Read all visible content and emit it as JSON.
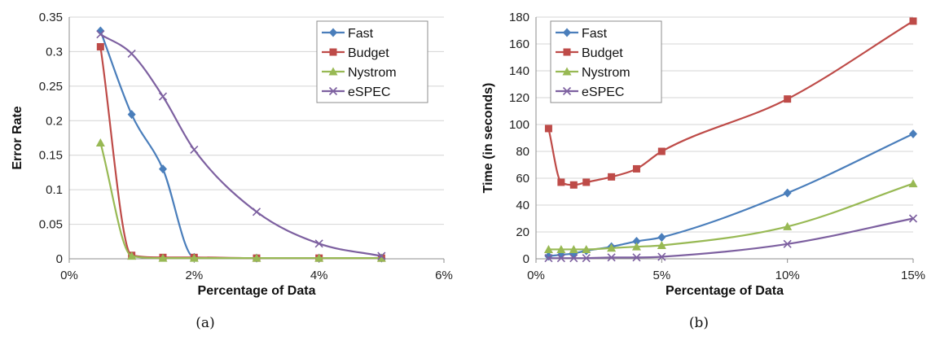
{
  "chart_data": [
    {
      "type": "line",
      "caption": "(a)",
      "xlabel": "Percentage of Data",
      "ylabel": "Error Rate",
      "xlim": [
        0,
        6
      ],
      "ylim": [
        0,
        0.35
      ],
      "x_ticks": [
        0,
        2,
        4,
        6
      ],
      "x_tick_labels": [
        "0%",
        "2%",
        "4%",
        "6%"
      ],
      "y_ticks": [
        0,
        0.05,
        0.1,
        0.15,
        0.2,
        0.25,
        0.3,
        0.35
      ],
      "y_tick_labels": [
        "0",
        "0.05",
        "0.1",
        "0.15",
        "0.2",
        "0.25",
        "0.3",
        "0.35"
      ],
      "grid": "horizontal",
      "legend_position": "top-right",
      "series": [
        {
          "name": "Fast",
          "color": "#4a7ebb",
          "marker": "diamond",
          "x": [
            0.5,
            1,
            1.5,
            2,
            3,
            4,
            5
          ],
          "y": [
            0.33,
            0.209,
            0.13,
            0.002,
            0.001,
            0.001,
            0.001
          ]
        },
        {
          "name": "Budget",
          "color": "#be4b48",
          "marker": "square",
          "x": [
            0.5,
            1,
            1.5,
            2,
            3,
            4,
            5
          ],
          "y": [
            0.307,
            0.005,
            0.002,
            0.002,
            0.001,
            0.001,
            0.001
          ]
        },
        {
          "name": "Nystrom",
          "color": "#98b954",
          "marker": "triangle",
          "x": [
            0.5,
            1,
            1.5,
            2,
            3,
            4,
            5
          ],
          "y": [
            0.168,
            0.004,
            0.001,
            0.001,
            0.001,
            0.001,
            0.001
          ]
        },
        {
          "name": "eSPEC",
          "color": "#7d60a0",
          "marker": "x",
          "x": [
            0.5,
            1,
            1.5,
            2,
            3,
            4,
            5
          ],
          "y": [
            0.325,
            0.297,
            0.235,
            0.158,
            0.068,
            0.022,
            0.004
          ]
        }
      ]
    },
    {
      "type": "line",
      "caption": "(b)",
      "xlabel": "Percentage of Data",
      "ylabel": "Time (in seconds)",
      "xlim": [
        0,
        15
      ],
      "ylim": [
        0,
        180
      ],
      "x_ticks": [
        0,
        5,
        10,
        15
      ],
      "x_tick_labels": [
        "0%",
        "5%",
        "10%",
        "15%"
      ],
      "y_ticks": [
        0,
        20,
        40,
        60,
        80,
        100,
        120,
        140,
        160,
        180
      ],
      "y_tick_labels": [
        "0",
        "20",
        "40",
        "60",
        "80",
        "100",
        "120",
        "140",
        "160",
        "180"
      ],
      "grid": "horizontal",
      "legend_position": "top-left",
      "series": [
        {
          "name": "Fast",
          "color": "#4a7ebb",
          "marker": "diamond",
          "x": [
            0.5,
            1,
            1.5,
            2,
            3,
            4,
            5,
            10,
            15
          ],
          "y": [
            2,
            3,
            4,
            6,
            9,
            13,
            16,
            49,
            93
          ]
        },
        {
          "name": "Budget",
          "color": "#be4b48",
          "marker": "square",
          "x": [
            0.5,
            1,
            1.5,
            2,
            3,
            4,
            5,
            10,
            15
          ],
          "y": [
            97,
            57,
            55,
            57,
            61,
            67,
            80,
            119,
            177
          ]
        },
        {
          "name": "Nystrom",
          "color": "#98b954",
          "marker": "triangle",
          "x": [
            0.5,
            1,
            1.5,
            2,
            3,
            4,
            5,
            10,
            15
          ],
          "y": [
            7,
            7,
            7,
            7,
            8,
            9,
            10,
            24,
            56
          ]
        },
        {
          "name": "eSPEC",
          "color": "#7d60a0",
          "marker": "x",
          "x": [
            0.5,
            1,
            1.5,
            2,
            3,
            4,
            5,
            10,
            15
          ],
          "y": [
            0.5,
            0.5,
            0.5,
            0.5,
            1,
            1,
            1.5,
            11,
            30
          ]
        }
      ]
    }
  ]
}
